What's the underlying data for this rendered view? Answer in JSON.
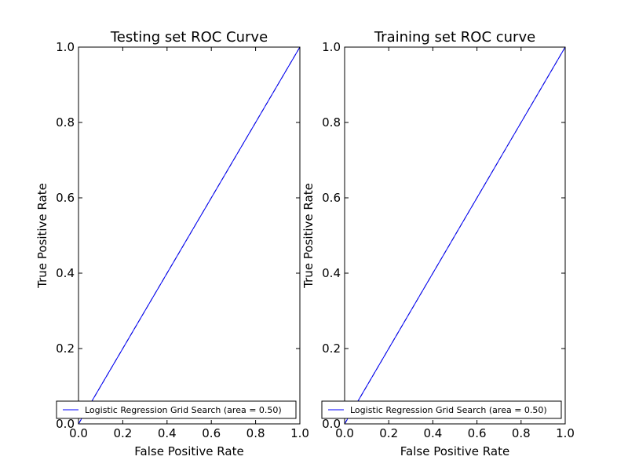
{
  "chart_data": [
    {
      "type": "line",
      "title": "Testing set ROC Curve",
      "xlabel": "False Positive Rate",
      "ylabel": "True Positive Rate",
      "xlim": [
        0.0,
        1.0
      ],
      "ylim": [
        0.0,
        1.0
      ],
      "xticks": [
        "0.0",
        "0.2",
        "0.4",
        "0.6",
        "0.8",
        "1.0"
      ],
      "yticks": [
        "0.0",
        "0.2",
        "0.4",
        "0.6",
        "0.8",
        "1.0"
      ],
      "grid": false,
      "legend_position": "lower-right",
      "series": [
        {
          "name": "Logistic Regression Grid Search (area = 0.50)",
          "color": "#0000ff",
          "x": [
            0.0,
            1.0
          ],
          "y": [
            0.0,
            1.0
          ]
        }
      ],
      "reference_line": {
        "style": "dashed",
        "color": "#000000",
        "x": [
          0.0,
          1.0
        ],
        "y": [
          0.0,
          1.0
        ]
      }
    },
    {
      "type": "line",
      "title": "Training set ROC curve",
      "xlabel": "False Positive Rate",
      "ylabel": "True Positive Rate",
      "xlim": [
        0.0,
        1.0
      ],
      "ylim": [
        0.0,
        1.0
      ],
      "xticks": [
        "0.0",
        "0.2",
        "0.4",
        "0.6",
        "0.8",
        "1.0"
      ],
      "yticks": [
        "0.0",
        "0.2",
        "0.4",
        "0.6",
        "0.8",
        "1.0"
      ],
      "grid": false,
      "legend_position": "lower-right",
      "series": [
        {
          "name": "Logistic Regression Grid Search (area = 0.50)",
          "color": "#0000ff",
          "x": [
            0.0,
            1.0
          ],
          "y": [
            0.0,
            1.0
          ]
        }
      ],
      "reference_line": {
        "style": "dashed",
        "color": "#000000",
        "x": [
          0.0,
          1.0
        ],
        "y": [
          0.0,
          1.0
        ]
      }
    }
  ]
}
